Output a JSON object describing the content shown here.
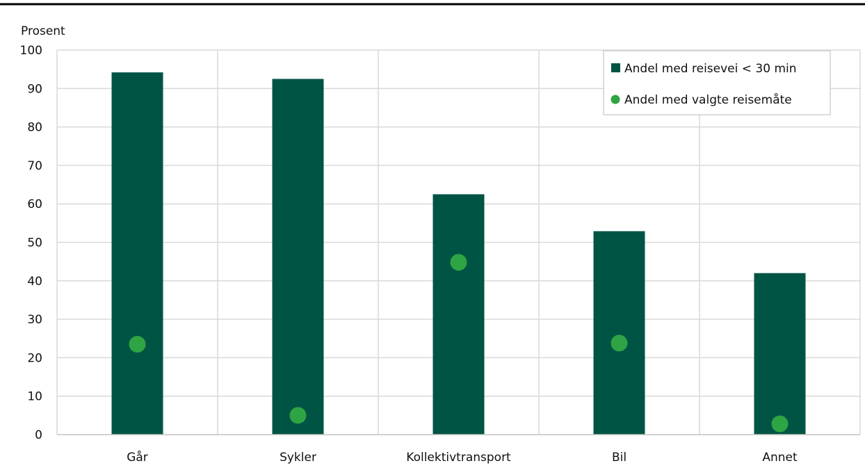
{
  "chart_data": {
    "type": "bar",
    "ylabel": "Prosent",
    "xlabel": "",
    "ylim": [
      0,
      100
    ],
    "yticks": [
      0,
      10,
      20,
      30,
      40,
      50,
      60,
      70,
      80,
      90,
      100
    ],
    "categories": [
      "Går",
      "Sykler",
      "Kollektivtransport",
      "Bil",
      "Annet"
    ],
    "series": [
      {
        "name": "Andel med reisevei < 30 min",
        "kind": "bar",
        "color": "#005444",
        "values": [
          94.2,
          92.5,
          62.5,
          52.9,
          42.0
        ]
      },
      {
        "name": "Andel med valgte reisemåte",
        "kind": "point",
        "color": "#2ea444",
        "values": [
          23.5,
          5.0,
          44.8,
          23.8,
          2.8
        ]
      }
    ],
    "grid": {
      "horizontal": true,
      "vertical": true
    },
    "legend_position": "top-right"
  }
}
